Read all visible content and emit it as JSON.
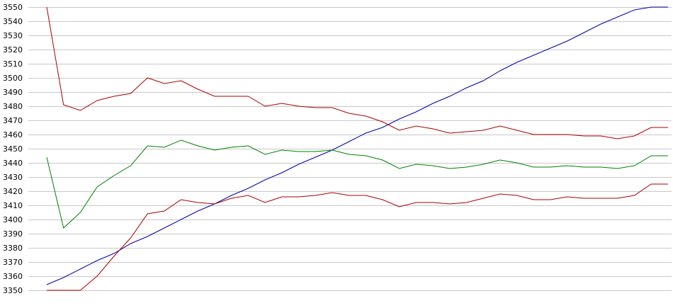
{
  "chart_data": {
    "type": "line",
    "title": "",
    "xlabel": "",
    "ylabel": "",
    "ylim": [
      3350,
      3550
    ],
    "yticks": [
      3350,
      3360,
      3370,
      3380,
      3390,
      3400,
      3410,
      3420,
      3430,
      3440,
      3450,
      3460,
      3470,
      3480,
      3490,
      3500,
      3510,
      3520,
      3530,
      3540,
      3550
    ],
    "grid": "horizontal",
    "legend": "none",
    "x": [
      0,
      1,
      2,
      3,
      4,
      5,
      6,
      7,
      8,
      9,
      10,
      11,
      12,
      13,
      14,
      15,
      16,
      17,
      18,
      19,
      20,
      21,
      22,
      23,
      24,
      25,
      26,
      27,
      28,
      29,
      30,
      31,
      32,
      33,
      34,
      35,
      36,
      37
    ],
    "series": [
      {
        "color": "#0000aa",
        "values": [
          3354,
          3359,
          3365,
          3371,
          3376,
          3383,
          3388,
          3394,
          3400,
          3406,
          3411,
          3417,
          3422,
          3428,
          3433,
          3439,
          3444,
          3449,
          3455,
          3461,
          3465,
          3471,
          3476,
          3482,
          3487,
          3493,
          3498,
          3505,
          3511,
          3516,
          3521,
          3526,
          3532,
          3538,
          3543,
          3548,
          3550,
          3550
        ]
      },
      {
        "color": "#aa0000",
        "values": [
          3550,
          3481,
          3477,
          3484,
          3487,
          3489,
          3500,
          3496,
          3498,
          3492,
          3487,
          3487,
          3487,
          3480,
          3482,
          3480,
          3479,
          3479,
          3475,
          3473,
          3469,
          3463,
          3466,
          3464,
          3461,
          3462,
          3463,
          3466,
          3463,
          3460,
          3460,
          3460,
          3459,
          3459,
          3457,
          3459,
          3465,
          3465
        ]
      },
      {
        "color": "#008000",
        "values": [
          3444,
          3394,
          3405,
          3423,
          3431,
          3438,
          3452,
          3451,
          3456,
          3452,
          3449,
          3451,
          3452,
          3446,
          3449,
          3448,
          3448,
          3449,
          3446,
          3445,
          3442,
          3436,
          3439,
          3438,
          3436,
          3437,
          3439,
          3442,
          3440,
          3437,
          3437,
          3438,
          3437,
          3437,
          3436,
          3438,
          3445,
          3445
        ]
      },
      {
        "color": "#aa0000",
        "values": [
          3350,
          3350,
          3350,
          3360,
          3374,
          3387,
          3404,
          3406,
          3414,
          3412,
          3411,
          3415,
          3417,
          3412,
          3416,
          3416,
          3417,
          3419,
          3417,
          3417,
          3414,
          3409,
          3412,
          3412,
          3411,
          3412,
          3415,
          3418,
          3417,
          3414,
          3414,
          3416,
          3415,
          3415,
          3415,
          3417,
          3425,
          3425
        ]
      }
    ]
  }
}
